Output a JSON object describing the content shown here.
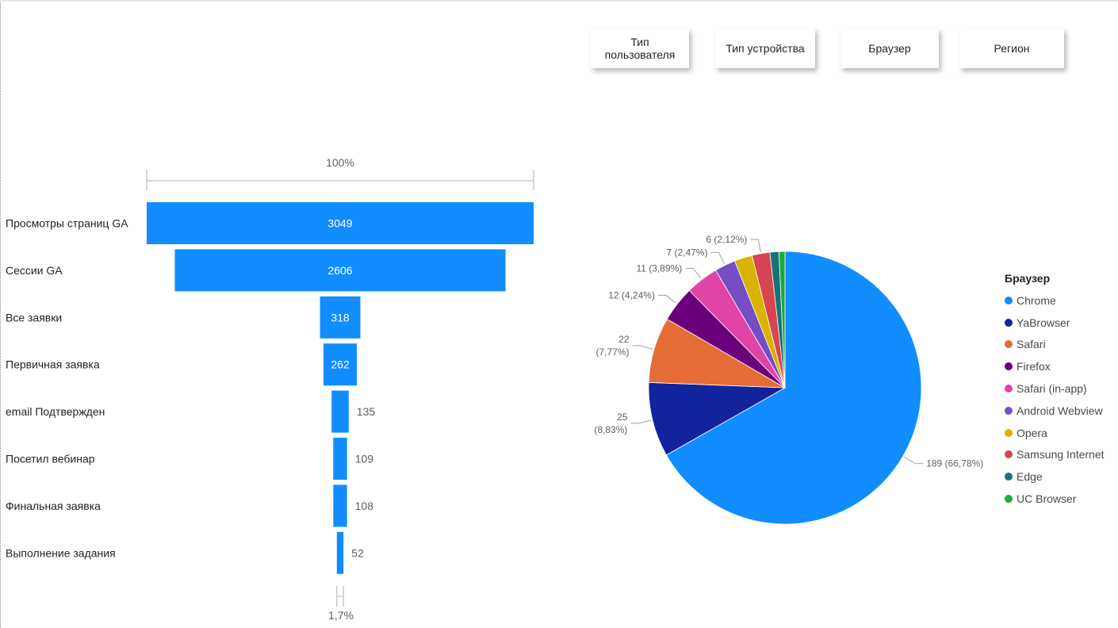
{
  "slicers": [
    {
      "label": "Тип пользователя",
      "line1": "Тип",
      "line2": "пользователя"
    },
    {
      "label": "Тип устройства"
    },
    {
      "label": "Браузер"
    },
    {
      "label": "Регион"
    }
  ],
  "chart_data": [
    {
      "type": "funnel",
      "top_label": "100%",
      "bottom_label": "1,7%",
      "categories": [
        "Просмотры страниц GA",
        "Сессии GA",
        "Все заявки",
        "Первичная заявка",
        "email Подтвержден",
        "Посетил вебинар",
        "Финальная заявка",
        "Выполнение задания"
      ],
      "values": [
        3049,
        2606,
        318,
        262,
        135,
        109,
        108,
        52
      ],
      "value_labels": [
        "3049",
        "2606",
        "318",
        "262",
        "135",
        "109",
        "108",
        "52"
      ],
      "color": "#118DFF"
    },
    {
      "type": "pie",
      "legend_title": "Браузер",
      "legend_position": "right",
      "categories": [
        "Chrome",
        "YaBrowser",
        "Safari",
        "Firefox",
        "Safari (in-app)",
        "Android Webview",
        "Opera",
        "Samsung Internet",
        "Edge",
        "UC Browser"
      ],
      "values": [
        189,
        25,
        22,
        12,
        11,
        7,
        6,
        6,
        3,
        2
      ],
      "colors": [
        "#118DFF",
        "#12239E",
        "#E66C37",
        "#6B007B",
        "#E044A7",
        "#744EC2",
        "#D9B300",
        "#D64550",
        "#197278",
        "#1AAB40"
      ],
      "data_labels": [
        {
          "index": 0,
          "line1": "189 (66,78%)"
        },
        {
          "index": 1,
          "line1": "25",
          "line2": "(8,83%)"
        },
        {
          "index": 2,
          "line1": "22",
          "line2": "(7,77%)"
        },
        {
          "index": 3,
          "line1": "12 (4,24%)"
        },
        {
          "index": 4,
          "line1": "11 (3,89%)"
        },
        {
          "index": 5,
          "line1": "7 (2,47%)"
        },
        {
          "index": 7,
          "line1": "6 (2,12%)"
        }
      ]
    }
  ]
}
